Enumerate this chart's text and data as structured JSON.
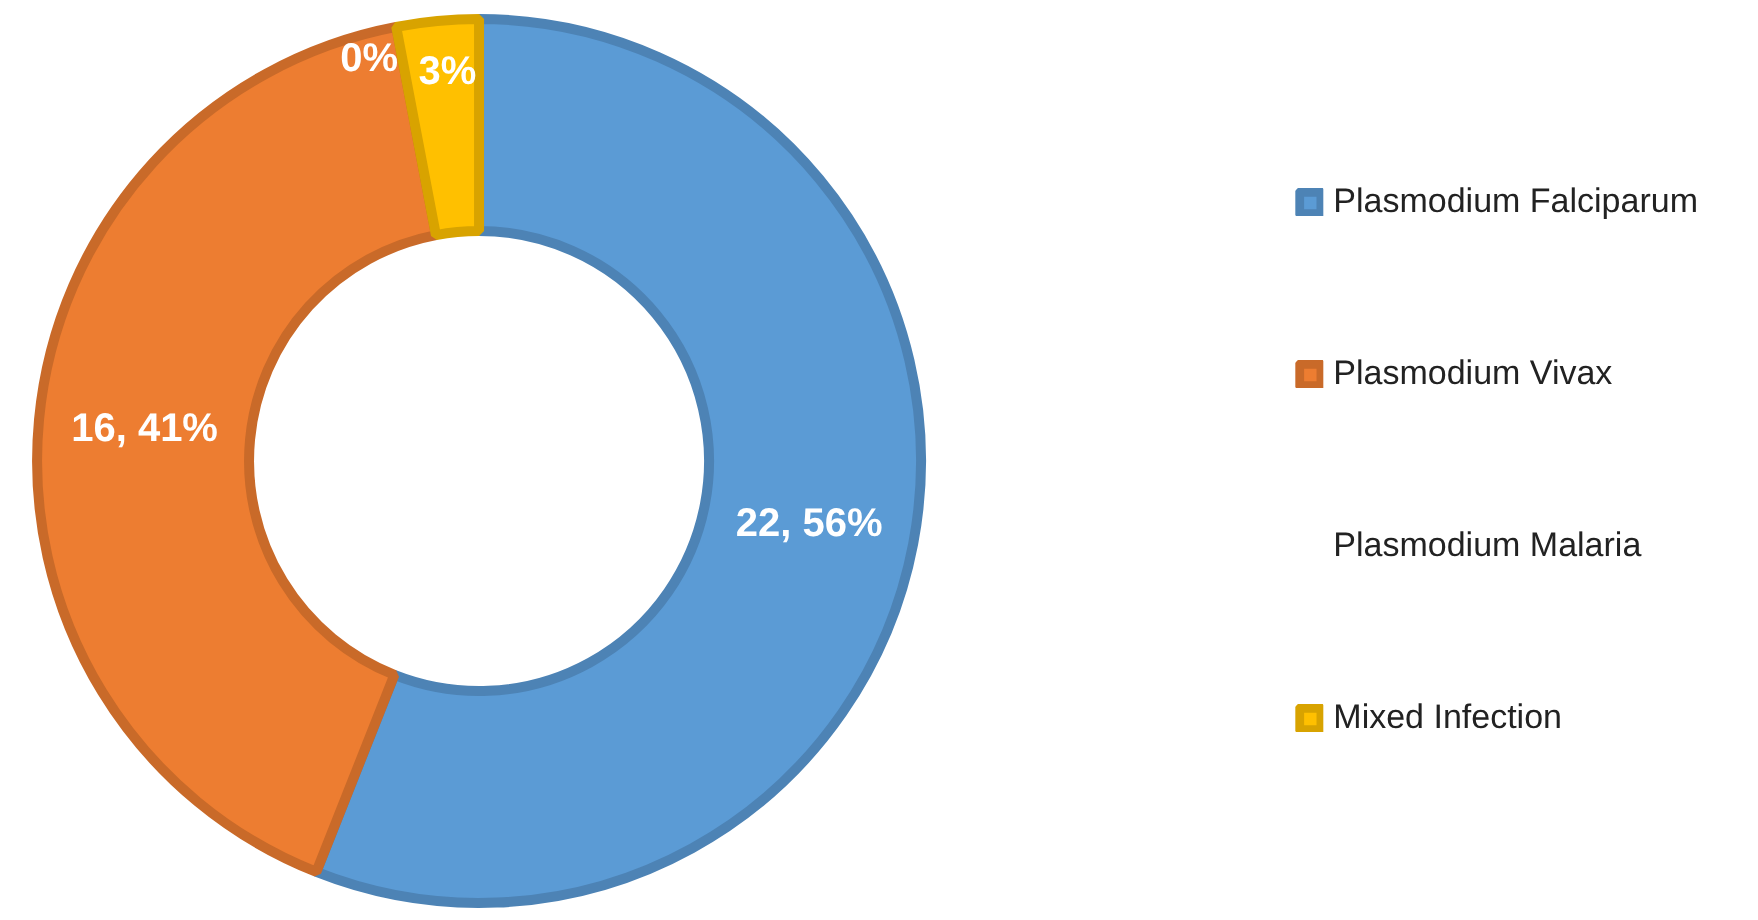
{
  "chart_data": {
    "type": "donut",
    "categories": [
      "Plasmodium Falciparum",
      "Plasmodium Vivax",
      "Plasmodium Malaria",
      "Mixed Infection"
    ],
    "values": [
      56,
      41,
      0,
      3
    ],
    "colors": [
      "#5b9bd5",
      "#ed7d31",
      "#a5a5a5",
      "#ffc000"
    ],
    "value_labels": [
      "22, 56%",
      "16, 41%",
      "0%",
      "3%"
    ],
    "legend": "right"
  }
}
